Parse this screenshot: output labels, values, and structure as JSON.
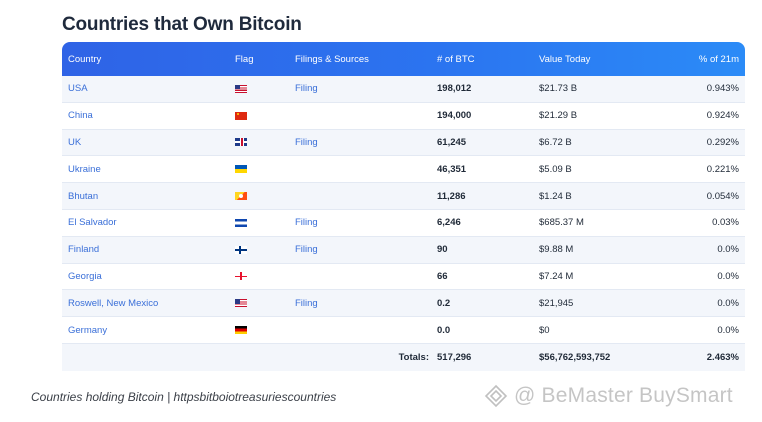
{
  "page": {
    "title": "Countries that Own Bitcoin"
  },
  "table": {
    "headers": {
      "country": "Country",
      "flag": "Flag",
      "filings": "Filings & Sources",
      "btc": "# of BTC",
      "value": "Value Today",
      "pct": "% of 21m"
    },
    "rows": [
      {
        "country": "USA",
        "flag": "usa-flag-icon",
        "filing": "Filing",
        "btc": "198,012",
        "value": "$21.73 B",
        "pct": "0.943%"
      },
      {
        "country": "China",
        "flag": "china-flag-icon",
        "filing": "",
        "btc": "194,000",
        "value": "$21.29 B",
        "pct": "0.924%"
      },
      {
        "country": "UK",
        "flag": "uk-flag-icon",
        "filing": "Filing",
        "btc": "61,245",
        "value": "$6.72 B",
        "pct": "0.292%"
      },
      {
        "country": "Ukraine",
        "flag": "ukraine-flag-icon",
        "filing": "",
        "btc": "46,351",
        "value": "$5.09 B",
        "pct": "0.221%"
      },
      {
        "country": "Bhutan",
        "flag": "bhutan-flag-icon",
        "filing": "",
        "btc": "11,286",
        "value": "$1.24 B",
        "pct": "0.054%"
      },
      {
        "country": "El Salvador",
        "flag": "el-salvador-flag-icon",
        "filing": "Filing",
        "btc": "6,246",
        "value": "$685.37 M",
        "pct": "0.03%"
      },
      {
        "country": "Finland",
        "flag": "finland-flag-icon",
        "filing": "Filing",
        "btc": "90",
        "value": "$9.88 M",
        "pct": "0.0%"
      },
      {
        "country": "Georgia",
        "flag": "georgia-flag-icon",
        "filing": "",
        "btc": "66",
        "value": "$7.24 M",
        "pct": "0.0%"
      },
      {
        "country": "Roswell, New Mexico",
        "flag": "usa-flag-icon",
        "filing": "Filing",
        "btc": "0.2",
        "value": "$21,945",
        "pct": "0.0%"
      },
      {
        "country": "Germany",
        "flag": "germany-flag-icon",
        "filing": "",
        "btc": "0.0",
        "value": "$0",
        "pct": "0.0%"
      }
    ],
    "totals": {
      "label": "Totals:",
      "btc": "517,296",
      "value": "$56,762,593,752",
      "pct": "2.463%"
    }
  },
  "caption": "Countries holding Bitcoin | httpsbitboiotreasuriescountries",
  "watermark": {
    "text": "@ BeMaster BuySmart",
    "icon": "diamond-logo-icon"
  },
  "colors": {
    "header_start": "#2f63e6",
    "header_end": "#2b8bf7",
    "link": "#3a6fd8",
    "stripe": "#f3f6fb"
  }
}
